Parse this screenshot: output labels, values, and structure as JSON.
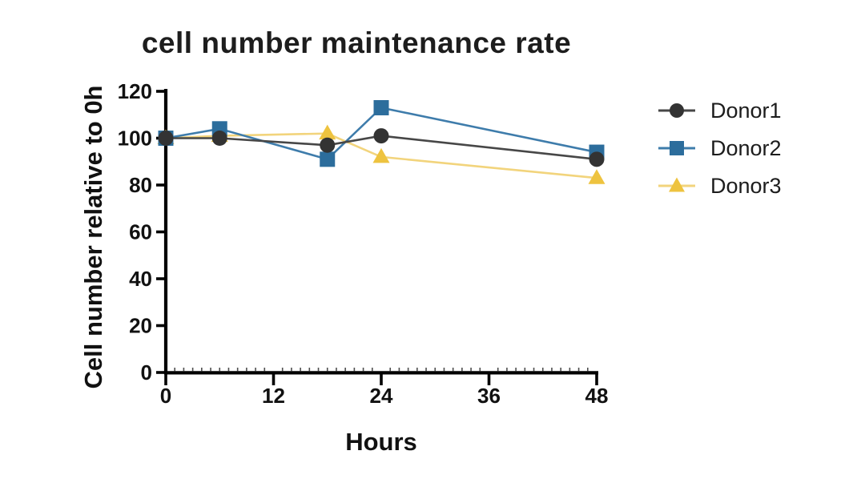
{
  "chart_data": {
    "type": "line",
    "title": "cell number maintenance rate",
    "xlabel": "Hours",
    "ylabel": "Cell number relative to 0h",
    "x": [
      0,
      6,
      18,
      24,
      48
    ],
    "series": [
      {
        "name": "Donor1",
        "marker": "circle",
        "marker_color": "#333333",
        "line_color": "#474747",
        "values": [
          100,
          100,
          97,
          101,
          91
        ]
      },
      {
        "name": "Donor2",
        "marker": "square",
        "marker_color": "#2c6d9c",
        "line_color": "#3e7cab",
        "values": [
          100,
          104,
          91,
          113,
          94
        ]
      },
      {
        "name": "Donor3",
        "marker": "triangle",
        "marker_color": "#eec33f",
        "line_color": "#f2d47c",
        "values": [
          100,
          101,
          102,
          92,
          83
        ]
      }
    ],
    "x_ticks": [
      0,
      12,
      24,
      36,
      48
    ],
    "y_ticks": [
      0,
      20,
      40,
      60,
      80,
      100,
      120
    ],
    "xlim": [
      0,
      48
    ],
    "ylim": [
      0,
      120
    ],
    "x_minor_tick_step": 1,
    "grid": false,
    "legend_position": "right",
    "axis_color": "#000000"
  }
}
